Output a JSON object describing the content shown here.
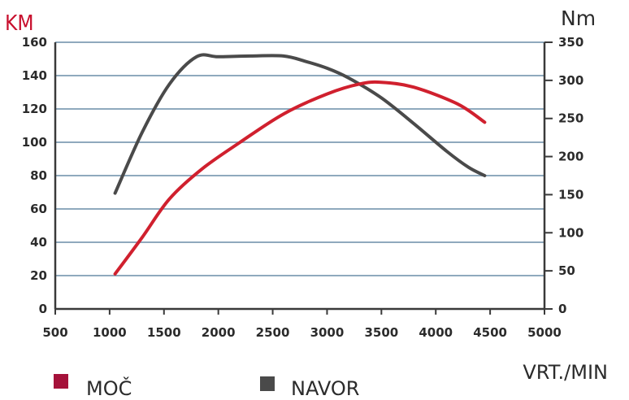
{
  "chart_data": {
    "type": "line",
    "left_axis_label": "KM",
    "right_axis_label": "Nm",
    "xlabel": "VRT./MIN",
    "xlim": [
      500,
      5000
    ],
    "x_ticks": [
      500,
      1000,
      1500,
      2000,
      2500,
      3000,
      3500,
      4000,
      4500,
      5000
    ],
    "left_ylim": [
      0,
      160
    ],
    "left_ticks": [
      0,
      20,
      40,
      60,
      80,
      100,
      120,
      140,
      160
    ],
    "right_ylim": [
      0,
      350
    ],
    "right_ticks": [
      0,
      50,
      100,
      150,
      200,
      250,
      300,
      350
    ],
    "grid": true,
    "legend_position": "bottom-left",
    "series": [
      {
        "name": "MOČ",
        "axis": "left",
        "color": "#d0202e",
        "legend_color": "#a5123a",
        "x": [
          1050,
          1300,
          1550,
          1850,
          2200,
          2600,
          3000,
          3300,
          3500,
          3800,
          4200,
          4450
        ],
        "y": [
          21,
          43,
          66,
          84,
          100,
          117,
          129,
          135,
          136,
          133,
          123,
          112
        ]
      },
      {
        "name": "NAVOR",
        "axis": "right",
        "color": "#4a4a4a",
        "legend_color": "#4a4a4a",
        "x": [
          1050,
          1300,
          1550,
          1800,
          2000,
          2300,
          2600,
          2800,
          3000,
          3200,
          3500,
          3800,
          4100,
          4300,
          4450
        ],
        "y": [
          152,
          232,
          295,
          331,
          331,
          332,
          332,
          325,
          316,
          303,
          277,
          243,
          207,
          186,
          175
        ]
      }
    ]
  }
}
